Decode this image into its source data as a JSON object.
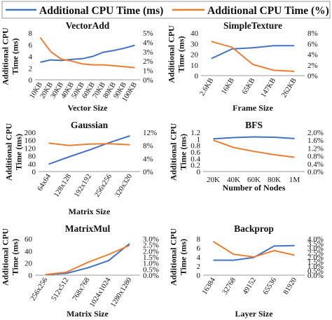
{
  "legend": {
    "items": [
      {
        "label": "Additional CPU Time (ms)",
        "color": "#4472C4"
      },
      {
        "label": "Additional CPU Time (%)",
        "color": "#ED7D31"
      }
    ]
  },
  "chart_data": [
    {
      "type": "line",
      "title": "VectorAdd",
      "xlabel": "Vector Size",
      "ylabel": "Additional CPU Time (ms)",
      "categories": [
        "10KB",
        "20KB",
        "30KB",
        "40KB",
        "50KB",
        "60KB",
        "70KB",
        "80KB",
        "90KB",
        "100KB"
      ],
      "ylim": [
        0,
        8
      ],
      "yticks": [
        "0",
        "2",
        "4",
        "6",
        "8"
      ],
      "y2lim": [
        0,
        5
      ],
      "y2ticks": [
        "0%",
        "1%",
        "2%",
        "3%",
        "4%",
        "5%"
      ],
      "series": [
        {
          "name": "Additional CPU Time (ms)",
          "axis": "left",
          "values": [
            3.0,
            3.4,
            3.3,
            3.5,
            3.6,
            4.0,
            4.7,
            5.0,
            5.4,
            5.9
          ]
        },
        {
          "name": "Additional CPU Time (%)",
          "axis": "right",
          "values": [
            4.5,
            3.0,
            2.2,
            2.0,
            1.7,
            1.6,
            1.6,
            1.5,
            1.4,
            1.3
          ]
        }
      ]
    },
    {
      "type": "line",
      "title": "SimpleTexture",
      "xlabel": "Frame Size",
      "ylabel": "Additional CPU Time (ms)",
      "categories": [
        "2.6KB",
        "16KB",
        "65KB",
        "147KB",
        "262KB"
      ],
      "ylim": [
        0,
        40
      ],
      "yticks": [
        "0",
        "10",
        "20",
        "30",
        "40"
      ],
      "y2lim": [
        0,
        8
      ],
      "y2ticks": [
        "0%",
        "2%",
        "4%",
        "6%",
        "8%"
      ],
      "series": [
        {
          "name": "Additional CPU Time (ms)",
          "axis": "left",
          "values": [
            16,
            25,
            26,
            28,
            28
          ]
        },
        {
          "name": "Additional CPU Time (%)",
          "axis": "right",
          "values": [
            6.4,
            5.3,
            2.1,
            1.0,
            0.8
          ]
        }
      ]
    },
    {
      "type": "line",
      "title": "Gaussian",
      "xlabel": "Matrix Size",
      "ylabel": "Additional CPU Time (ms)",
      "categories": [
        "64x64",
        "128x128",
        "192x192",
        "256x256",
        "320x320"
      ],
      "ylim": [
        0,
        200
      ],
      "yticks": [
        "0",
        "40",
        "80",
        "120",
        "160",
        "200"
      ],
      "y2lim": [
        0,
        12
      ],
      "y2ticks": [
        "0%",
        "4%",
        "8%",
        "12%"
      ],
      "series": [
        {
          "name": "Additional CPU Time (ms)",
          "axis": "left",
          "values": [
            38,
            75,
            110,
            148,
            182
          ]
        },
        {
          "name": "Additional CPU Time (%)",
          "axis": "right",
          "values": [
            8.7,
            8.0,
            8.4,
            8.5,
            8.2
          ]
        }
      ]
    },
    {
      "type": "line",
      "title": "BFS",
      "xlabel": "Number of Nodes",
      "ylabel": "Additional CPU Time (ms)",
      "categories": [
        "20K",
        "40K",
        "60K",
        "80K",
        "1M"
      ],
      "ylim": [
        0,
        1.2
      ],
      "yticks": [
        "0",
        "0.2",
        "0.4",
        "0.6",
        "0.8",
        "1",
        "1.2"
      ],
      "y2lim": [
        0,
        2.0
      ],
      "y2ticks": [
        "0.0%",
        "0.4%",
        "0.8%",
        "1.2%",
        "1.6%",
        "2.0%"
      ],
      "series": [
        {
          "name": "Additional CPU Time (ms)",
          "axis": "left",
          "values": [
            1.0,
            1.04,
            1.06,
            1.05,
            1.01
          ]
        },
        {
          "name": "Additional CPU Time (%)",
          "axis": "right",
          "values": [
            1.6,
            1.23,
            1.03,
            0.86,
            0.73
          ]
        }
      ]
    },
    {
      "type": "line",
      "title": "MatrixMul",
      "xlabel": "Matrix Size",
      "ylabel": "Additional CPU Time (ms)",
      "categories": [
        "256x256",
        "512x512",
        "768x768",
        "1024x1024",
        "1280x1280"
      ],
      "ylim": [
        0,
        60
      ],
      "yticks": [
        "0",
        "20",
        "40",
        "60"
      ],
      "y2lim": [
        0,
        3.0
      ],
      "y2ticks": [
        "0.0%",
        "0.5%",
        "1.0%",
        "1.5%",
        "2.0%",
        "2.5%",
        "3.0%"
      ],
      "series": [
        {
          "name": "Additional CPU Time (ms)",
          "axis": "left",
          "values": [
            1,
            3,
            12,
            24,
            52
          ]
        },
        {
          "name": "Additional CPU Time (%)",
          "axis": "right",
          "values": [
            0.05,
            0.25,
            1.05,
            1.7,
            2.45
          ]
        }
      ]
    },
    {
      "type": "line",
      "title": "Backprop",
      "xlabel": "Layer Size",
      "ylabel": "Additional CPU Time (ms)",
      "categories": [
        "16384",
        "32768",
        "49152",
        "65536",
        "81920"
      ],
      "ylim": [
        0,
        8
      ],
      "yticks": [
        "0",
        "2",
        "4",
        "6",
        "8"
      ],
      "y2lim": [
        0,
        4.0
      ],
      "y2ticks": [
        "0.0%",
        "0.5%",
        "1.0%",
        "1.5%",
        "2.0%",
        "2.5%",
        "3.0%",
        "3.5%",
        "4.0%"
      ],
      "series": [
        {
          "name": "Additional CPU Time (ms)",
          "axis": "left",
          "values": [
            3.3,
            3.3,
            3.9,
            6.4,
            6.5
          ]
        },
        {
          "name": "Additional CPU Time (%)",
          "axis": "right",
          "values": [
            3.7,
            2.3,
            2.0,
            2.7,
            2.2
          ]
        }
      ]
    }
  ]
}
